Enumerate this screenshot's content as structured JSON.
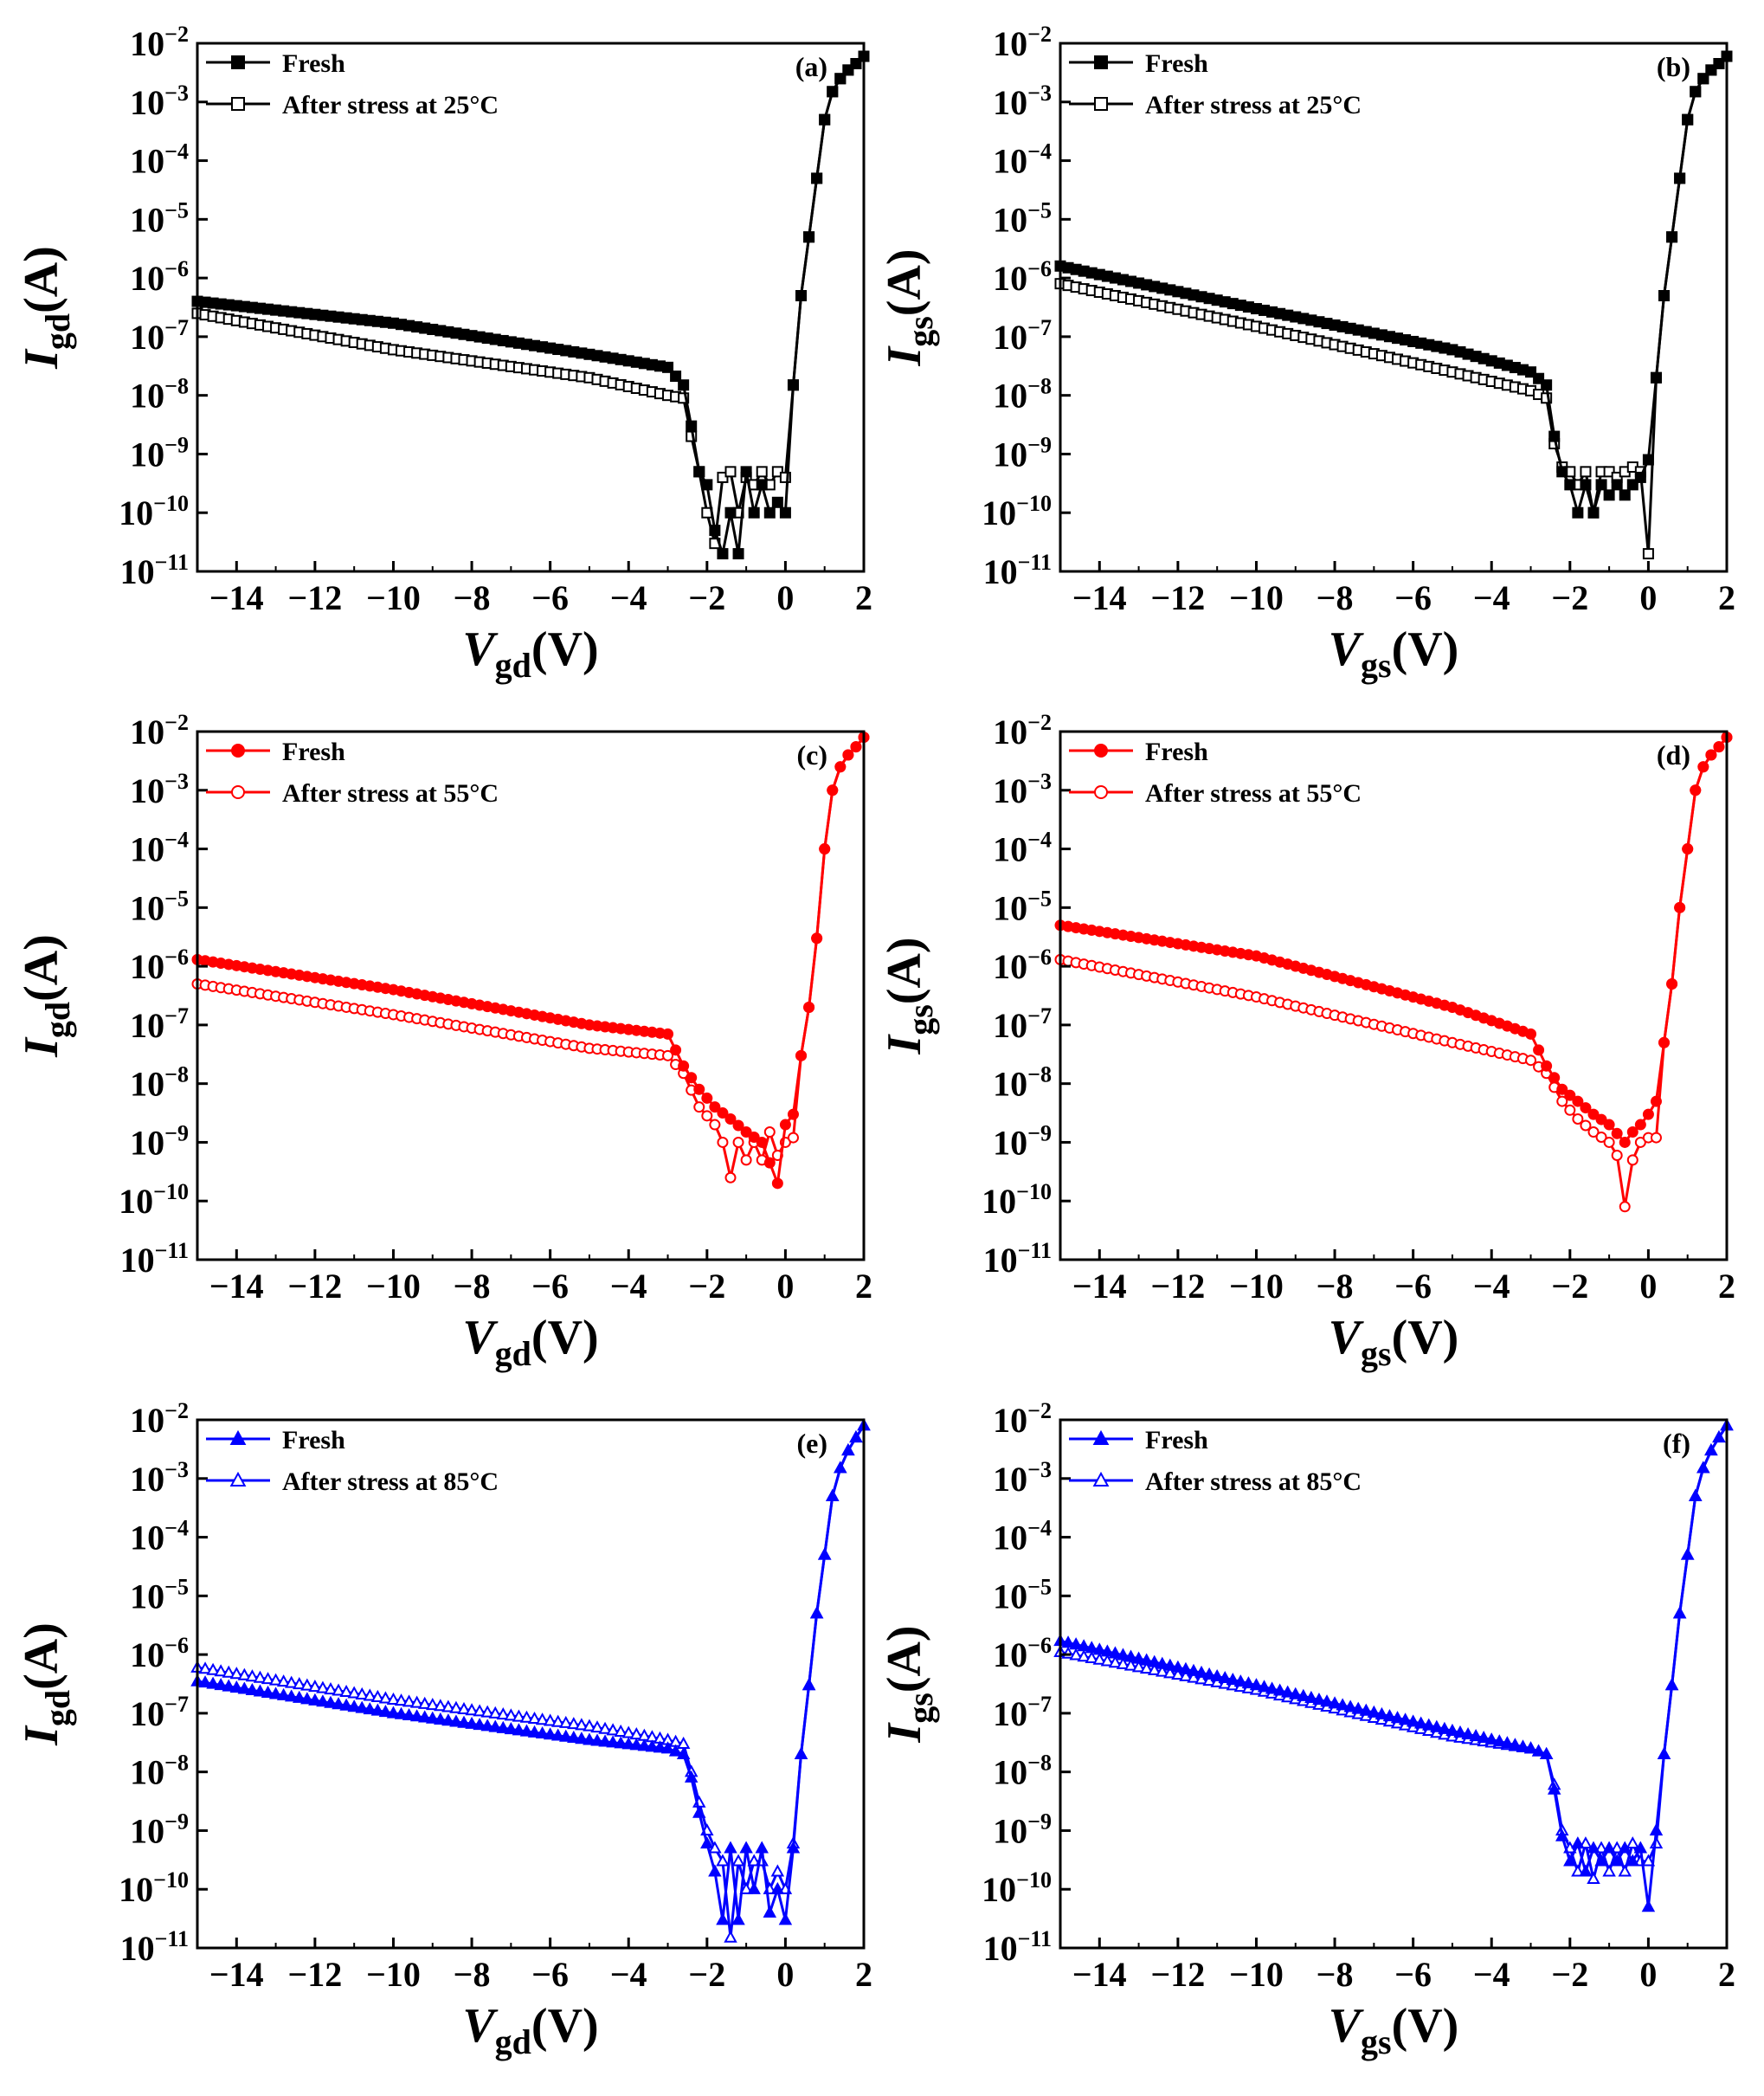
{
  "figure": {
    "axis_style": {
      "frame_color": "#000000",
      "background": "#ffffff"
    },
    "colors": {
      "black": "#000000",
      "red": "#ff0000",
      "blue": "#0000ff"
    }
  },
  "chart_data": [
    {
      "panel": "(a)",
      "type": "line",
      "yscale": "log",
      "xlabel": {
        "main": "V",
        "sub": "gd",
        "rest": "(V)"
      },
      "ylabel": {
        "main": "I",
        "sub": "gd",
        "rest": "(A)"
      },
      "xlim": [
        -15,
        2
      ],
      "ylim_exponent": [
        -11,
        -2
      ],
      "xticks": [
        -14,
        -12,
        -10,
        -8,
        -6,
        -4,
        -2,
        0,
        2
      ],
      "ytick_exponents": [
        -11,
        -10,
        -9,
        -8,
        -7,
        -6,
        -5,
        -4,
        -3,
        -2
      ],
      "color": "#000000",
      "marker": "square",
      "legend": [
        "Fresh",
        "After stress at 25°C"
      ],
      "series": [
        {
          "name": "Fresh",
          "fill": "filled",
          "x": [
            -15,
            -10,
            -5,
            -3,
            -2.6,
            -2.4,
            -2.2,
            -2.0,
            -1.8,
            -1.6,
            -1.4,
            -1.2,
            -1.0,
            -0.8,
            -0.6,
            -0.4,
            -0.2,
            0,
            0.2,
            0.4,
            0.6,
            0.8,
            1.0,
            1.2,
            1.4,
            1.6,
            1.8,
            2.0
          ],
          "y": [
            4e-07,
            1.7e-07,
            5e-08,
            3e-08,
            1.5e-08,
            3e-09,
            5e-10,
            3e-10,
            5e-11,
            2e-11,
            1e-10,
            2e-11,
            5e-10,
            1e-10,
            3e-10,
            1e-10,
            1.5e-10,
            1e-10,
            1.5e-08,
            5e-07,
            5e-06,
            5e-05,
            0.0005,
            0.0015,
            0.0025,
            0.0035,
            0.0045,
            0.006
          ]
        },
        {
          "name": "After stress at 25°C",
          "fill": "open",
          "x": [
            -15,
            -10,
            -5,
            -3,
            -2.6,
            -2.4,
            -2.2,
            -2.0,
            -1.8,
            -1.6,
            -1.4,
            -1.2,
            -1.0,
            -0.8,
            -0.6,
            -0.4,
            -0.2,
            0,
            0.2,
            0.4,
            0.6,
            0.8,
            1.0,
            1.2,
            1.4,
            1.6,
            1.8,
            2.0
          ],
          "y": [
            2.5e-07,
            6e-08,
            2e-08,
            1e-08,
            9e-09,
            2e-09,
            5e-10,
            1e-10,
            3e-11,
            4e-10,
            5e-10,
            1e-10,
            4e-10,
            3e-10,
            5e-10,
            3e-10,
            5e-10,
            4e-10,
            1.5e-08,
            5e-07,
            5e-06,
            5e-05,
            0.0005,
            0.0015,
            0.0025,
            0.0035,
            0.0045,
            0.006
          ]
        }
      ]
    },
    {
      "panel": "(b)",
      "type": "line",
      "yscale": "log",
      "xlabel": {
        "main": "V",
        "sub": "gs",
        "rest": "(V)"
      },
      "ylabel": {
        "main": "I",
        "sub": "gs",
        "rest": "(A)"
      },
      "xlim": [
        -15,
        2
      ],
      "ylim_exponent": [
        -11,
        -2
      ],
      "xticks": [
        -14,
        -12,
        -10,
        -8,
        -6,
        -4,
        -2,
        0,
        2
      ],
      "ytick_exponents": [
        -11,
        -10,
        -9,
        -8,
        -7,
        -6,
        -5,
        -4,
        -3,
        -2
      ],
      "color": "#000000",
      "marker": "square",
      "legend": [
        "Fresh",
        "After stress at 25°C"
      ],
      "series": [
        {
          "name": "Fresh",
          "fill": "filled",
          "x": [
            -15,
            -10,
            -5,
            -3,
            -2.6,
            -2.4,
            -2.2,
            -2.0,
            -1.8,
            -1.6,
            -1.4,
            -1.2,
            -1.0,
            -0.8,
            -0.6,
            -0.4,
            -0.2,
            0,
            0.2,
            0.4,
            0.6,
            0.8,
            1.0,
            1.2,
            1.4,
            1.6,
            1.8,
            2.0
          ],
          "y": [
            1.6e-06,
            3e-07,
            6e-08,
            2.5e-08,
            1.5e-08,
            2e-09,
            5e-10,
            3e-10,
            1e-10,
            3e-10,
            1e-10,
            3e-10,
            2e-10,
            3e-10,
            2e-10,
            3e-10,
            4e-10,
            8e-10,
            2e-08,
            5e-07,
            5e-06,
            5e-05,
            0.0005,
            0.0015,
            0.0025,
            0.0035,
            0.0045,
            0.006
          ]
        },
        {
          "name": "After stress at 25°C",
          "fill": "open",
          "x": [
            -15,
            -10,
            -5,
            -3,
            -2.6,
            -2.4,
            -2.2,
            -2.0,
            -1.8,
            -1.6,
            -1.4,
            -1.2,
            -1.0,
            -0.8,
            -0.6,
            -0.4,
            -0.2,
            0,
            0.2,
            0.4,
            0.6,
            0.8,
            1.0,
            1.2,
            1.4,
            1.6,
            1.8,
            2.0
          ],
          "y": [
            8e-07,
            1.5e-07,
            2.5e-08,
            1.2e-08,
            9e-09,
            1.5e-09,
            6e-10,
            5e-10,
            3e-10,
            5e-10,
            1e-10,
            5e-10,
            5e-10,
            4e-10,
            5e-10,
            6e-10,
            5e-10,
            2e-11,
            2e-08,
            5e-07,
            5e-06,
            5e-05,
            0.0005,
            0.0015,
            0.0025,
            0.0035,
            0.0045,
            0.006
          ]
        }
      ]
    },
    {
      "panel": "(c)",
      "type": "line",
      "yscale": "log",
      "xlabel": {
        "main": "V",
        "sub": "gd",
        "rest": "(V)"
      },
      "ylabel": {
        "main": "I",
        "sub": "gd",
        "rest": "(A)"
      },
      "xlim": [
        -15,
        2
      ],
      "ylim_exponent": [
        -11,
        -2
      ],
      "xticks": [
        -14,
        -12,
        -10,
        -8,
        -6,
        -4,
        -2,
        0,
        2
      ],
      "ytick_exponents": [
        -11,
        -10,
        -9,
        -8,
        -7,
        -6,
        -5,
        -4,
        -3,
        -2
      ],
      "color": "#ff0000",
      "marker": "circle",
      "legend": [
        "Fresh",
        "After stress at 55°C"
      ],
      "series": [
        {
          "name": "Fresh",
          "fill": "filled",
          "x": [
            -15,
            -10,
            -5,
            -3,
            -2.6,
            -2.2,
            -1.8,
            -1.4,
            -1.0,
            -0.6,
            -0.2,
            0,
            0.2,
            0.4,
            0.6,
            0.8,
            1.0,
            1.2,
            1.4,
            1.6,
            1.8,
            2.0
          ],
          "y": [
            1.3e-06,
            4e-07,
            1e-07,
            7e-08,
            2e-08,
            8e-09,
            4e-09,
            2.5e-09,
            1.5e-09,
            1e-09,
            2e-10,
            2e-09,
            3e-09,
            3e-08,
            2e-07,
            3e-06,
            0.0001,
            0.001,
            0.0025,
            0.004,
            0.0055,
            0.008
          ]
        },
        {
          "name": "After stress at 55°C",
          "fill": "open",
          "x": [
            -15,
            -10,
            -5,
            -3,
            -2.6,
            -2.2,
            -1.8,
            -1.6,
            -1.4,
            -1.2,
            -1.0,
            -0.8,
            -0.6,
            -0.4,
            -0.2,
            0,
            0.2,
            0.4,
            0.6,
            0.8,
            1.0,
            1.2,
            1.4,
            1.6,
            1.8,
            2.0
          ],
          "y": [
            5e-07,
            1.5e-07,
            4e-08,
            3e-08,
            1.5e-08,
            4e-09,
            2e-09,
            1e-09,
            2.5e-10,
            1e-09,
            5e-10,
            1e-09,
            5e-10,
            1.5e-09,
            6e-10,
            1e-09,
            1.2e-09,
            3e-08,
            2e-07,
            3e-06,
            0.0001,
            0.001,
            0.0025,
            0.004,
            0.0055,
            0.008
          ]
        }
      ]
    },
    {
      "panel": "(d)",
      "type": "line",
      "yscale": "log",
      "xlabel": {
        "main": "V",
        "sub": "gs",
        "rest": "(V)"
      },
      "ylabel": {
        "main": "I",
        "sub": "gs",
        "rest": "(A)"
      },
      "xlim": [
        -15,
        2
      ],
      "ylim_exponent": [
        -11,
        -2
      ],
      "xticks": [
        -14,
        -12,
        -10,
        -8,
        -6,
        -4,
        -2,
        0,
        2
      ],
      "ytick_exponents": [
        -11,
        -10,
        -9,
        -8,
        -7,
        -6,
        -5,
        -4,
        -3,
        -2
      ],
      "color": "#ff0000",
      "marker": "circle",
      "legend": [
        "Fresh",
        "After stress at 55°C"
      ],
      "series": [
        {
          "name": "Fresh",
          "fill": "filled",
          "x": [
            -15,
            -10,
            -5,
            -3,
            -2.6,
            -2.2,
            -1.8,
            -1.4,
            -1.0,
            -0.6,
            -0.4,
            -0.2,
            0,
            0.2,
            0.4,
            0.6,
            0.8,
            1.0,
            1.2,
            1.4,
            1.6,
            1.8,
            2.0
          ],
          "y": [
            5e-06,
            1.5e-06,
            2e-07,
            7e-08,
            2e-08,
            8e-09,
            5e-09,
            3e-09,
            2e-09,
            1e-09,
            1.5e-09,
            2e-09,
            3e-09,
            5e-09,
            5e-08,
            5e-07,
            1e-05,
            0.0001,
            0.001,
            0.0025,
            0.004,
            0.0055,
            0.008
          ]
        },
        {
          "name": "After stress at 55°C",
          "fill": "open",
          "x": [
            -15,
            -10,
            -5,
            -3,
            -2.6,
            -2.2,
            -1.8,
            -1.4,
            -1.0,
            -0.8,
            -0.6,
            -0.4,
            -0.2,
            0,
            0.2,
            0.4,
            0.6,
            0.8,
            1.0,
            1.2,
            1.4,
            1.6,
            1.8,
            2.0
          ],
          "y": [
            1.3e-06,
            3e-07,
            5e-08,
            2.5e-08,
            1.5e-08,
            5e-09,
            2.5e-09,
            1.5e-09,
            1e-09,
            6e-10,
            8e-11,
            5e-10,
            1e-09,
            1.2e-09,
            1.2e-09,
            5e-08,
            5e-07,
            1e-05,
            0.0001,
            0.001,
            0.0025,
            0.004,
            0.0055,
            0.008
          ]
        }
      ]
    },
    {
      "panel": "(e)",
      "type": "line",
      "yscale": "log",
      "xlabel": {
        "main": "V",
        "sub": "gd",
        "rest": "(V)"
      },
      "ylabel": {
        "main": "I",
        "sub": "gd",
        "rest": "(A)"
      },
      "xlim": [
        -15,
        2
      ],
      "ylim_exponent": [
        -11,
        -2
      ],
      "xticks": [
        -14,
        -12,
        -10,
        -8,
        -6,
        -4,
        -2,
        0,
        2
      ],
      "ytick_exponents": [
        -11,
        -10,
        -9,
        -8,
        -7,
        -6,
        -5,
        -4,
        -3,
        -2
      ],
      "color": "#0000ff",
      "marker": "triangle",
      "legend": [
        "Fresh",
        "After stress at 85°C"
      ],
      "series": [
        {
          "name": "Fresh",
          "fill": "filled",
          "x": [
            -15,
            -10,
            -5,
            -3,
            -2.6,
            -2.4,
            -2.2,
            -2.0,
            -1.8,
            -1.6,
            -1.4,
            -1.2,
            -1.0,
            -0.8,
            -0.6,
            -0.4,
            -0.2,
            0,
            0.2,
            0.4,
            0.6,
            0.8,
            1.0,
            1.2,
            1.4,
            1.6,
            1.8,
            2.0
          ],
          "y": [
            3.5e-07,
            1e-07,
            3.5e-08,
            2.5e-08,
            2e-08,
            8e-09,
            2e-09,
            6e-10,
            2e-10,
            3e-11,
            5e-10,
            3e-11,
            5e-10,
            1e-10,
            5e-10,
            4e-11,
            1e-10,
            3e-11,
            5e-10,
            2e-08,
            3e-07,
            5e-06,
            5e-05,
            0.0005,
            0.0015,
            0.003,
            0.005,
            0.008
          ]
        },
        {
          "name": "After stress at 85°C",
          "fill": "open",
          "x": [
            -15,
            -10,
            -5,
            -3,
            -2.6,
            -2.4,
            -2.2,
            -2.0,
            -1.8,
            -1.6,
            -1.4,
            -1.2,
            -1.0,
            -0.8,
            -0.6,
            -0.4,
            -0.2,
            0,
            0.2,
            0.4,
            0.6,
            0.8,
            1.0,
            1.2,
            1.4,
            1.6,
            1.8,
            2.0
          ],
          "y": [
            6e-07,
            1.7e-07,
            6e-08,
            3.5e-08,
            3e-08,
            1e-08,
            3e-09,
            1e-09,
            5e-10,
            3e-10,
            1.5e-11,
            3e-10,
            1e-10,
            3e-10,
            3e-10,
            1e-10,
            2e-10,
            1e-10,
            6e-10,
            2e-08,
            3e-07,
            5e-06,
            5e-05,
            0.0005,
            0.0015,
            0.003,
            0.005,
            0.008
          ]
        }
      ]
    },
    {
      "panel": "(f)",
      "type": "line",
      "yscale": "log",
      "xlabel": {
        "main": "V",
        "sub": "gs",
        "rest": "(V)"
      },
      "ylabel": {
        "main": "I",
        "sub": "gs",
        "rest": "(A)"
      },
      "xlim": [
        -15,
        2
      ],
      "ylim_exponent": [
        -11,
        -2
      ],
      "xticks": [
        -14,
        -12,
        -10,
        -8,
        -6,
        -4,
        -2,
        0,
        2
      ],
      "ytick_exponents": [
        -11,
        -10,
        -9,
        -8,
        -7,
        -6,
        -5,
        -4,
        -3,
        -2
      ],
      "color": "#0000ff",
      "marker": "triangle",
      "legend": [
        "Fresh",
        "After stress at 85°C"
      ],
      "series": [
        {
          "name": "Fresh",
          "fill": "filled",
          "x": [
            -15,
            -10,
            -5,
            -3,
            -2.6,
            -2.4,
            -2.2,
            -2.0,
            -1.8,
            -1.6,
            -1.4,
            -1.2,
            -1.0,
            -0.8,
            -0.6,
            -0.4,
            -0.2,
            0,
            0.2,
            0.4,
            0.6,
            0.8,
            1.0,
            1.2,
            1.4,
            1.6,
            1.8,
            2.0
          ],
          "y": [
            1.7e-06,
            3e-07,
            5e-08,
            2.5e-08,
            2e-08,
            5e-09,
            8e-10,
            3e-10,
            6e-10,
            2e-10,
            5e-10,
            3e-10,
            5e-10,
            3e-10,
            5e-10,
            3e-10,
            5e-10,
            5e-11,
            1e-09,
            2e-08,
            3e-07,
            5e-06,
            5e-05,
            0.0005,
            0.0015,
            0.003,
            0.005,
            0.008
          ]
        },
        {
          "name": "After stress at 85°C",
          "fill": "open",
          "x": [
            -15,
            -10,
            -5,
            -3,
            -2.6,
            -2.4,
            -2.2,
            -2.0,
            -1.8,
            -1.6,
            -1.4,
            -1.2,
            -1.0,
            -0.8,
            -0.6,
            -0.4,
            -0.2,
            0,
            0.2,
            0.4,
            0.6,
            0.8,
            1.0,
            1.2,
            1.4,
            1.6,
            1.8,
            2.0
          ],
          "y": [
            1.1e-06,
            2.5e-07,
            4e-08,
            2.5e-08,
            2e-08,
            6e-09,
            1e-09,
            5e-10,
            2e-10,
            6e-10,
            1.5e-10,
            5e-10,
            2e-10,
            5e-10,
            2e-10,
            6e-10,
            3e-10,
            3e-10,
            6e-10,
            2e-08,
            3e-07,
            5e-06,
            5e-05,
            0.0005,
            0.0015,
            0.003,
            0.005,
            0.008
          ]
        }
      ]
    }
  ]
}
